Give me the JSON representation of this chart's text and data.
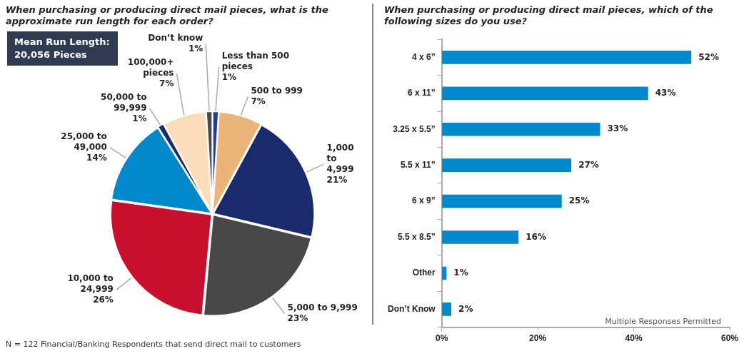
{
  "chart_data": [
    {
      "type": "pie",
      "title": "When purchasing or producing direct mail pieces, what is the approximate run length for each order?",
      "categories": [
        "Less than 500 pieces",
        "500 to 999",
        "1,000 to 4,999",
        "5,000 to 9,999",
        "10,000 to 24,999",
        "25,000 to 49,000",
        "50,000 to 99,999",
        "100,000+ pieces",
        "Don’t know"
      ],
      "values": [
        1,
        7,
        21,
        23,
        26,
        14,
        1,
        7,
        1
      ],
      "value_labels": [
        "1%",
        "7%",
        "21%",
        "23%",
        "26%",
        "14%",
        "1%",
        "7%",
        "1%"
      ],
      "colors": [
        "#1f3c9c",
        "#ebb57a",
        "#1a2b6d",
        "#484848",
        "#c8102e",
        "#0088cc",
        "#1a2b6d",
        "#fbddb9",
        "#4a4a4a"
      ],
      "legend": false,
      "annotations": [
        "Mean Run Length: 20,056 Pieces",
        "N = 122 Financial/Banking Respondents that send direct mail to customers"
      ]
    },
    {
      "type": "bar",
      "orientation": "horizontal",
      "title": "When purchasing or producing direct mail pieces, which of the following sizes do you use?",
      "categories": [
        "4 x 6”",
        "6 x 11”",
        "3.25 x 5.5”",
        "5.5 x 11”",
        "6 x 9”",
        "5.5 x 8.5”",
        "Other",
        "Don’t Know"
      ],
      "values": [
        52,
        43,
        33,
        27,
        25,
        16,
        1,
        2
      ],
      "value_labels": [
        "52%",
        "43%",
        "33%",
        "27%",
        "25%",
        "16%",
        "1%",
        "2%"
      ],
      "color": "#0088cc",
      "xlim": [
        0,
        60
      ],
      "xticks": [
        {
          "value": 0,
          "label": "0%"
        },
        {
          "value": 20,
          "label": "20%"
        },
        {
          "value": 40,
          "label": "40%"
        },
        {
          "value": 60,
          "label": "60%"
        }
      ],
      "grid": false,
      "legend": false,
      "annotations": [
        "Multiple Responses Permitted"
      ]
    }
  ]
}
